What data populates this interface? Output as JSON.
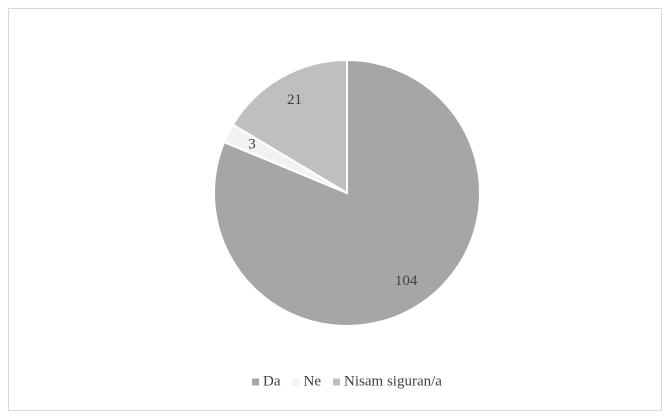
{
  "chart_data": {
    "type": "pie",
    "categories": [
      "Da",
      "Ne",
      "Nisam siguran/a"
    ],
    "values": [
      104,
      3,
      21
    ],
    "colors": [
      "#a6a6a6",
      "#f2f2f2",
      "#bfbfbf"
    ],
    "legend": "bottom"
  }
}
